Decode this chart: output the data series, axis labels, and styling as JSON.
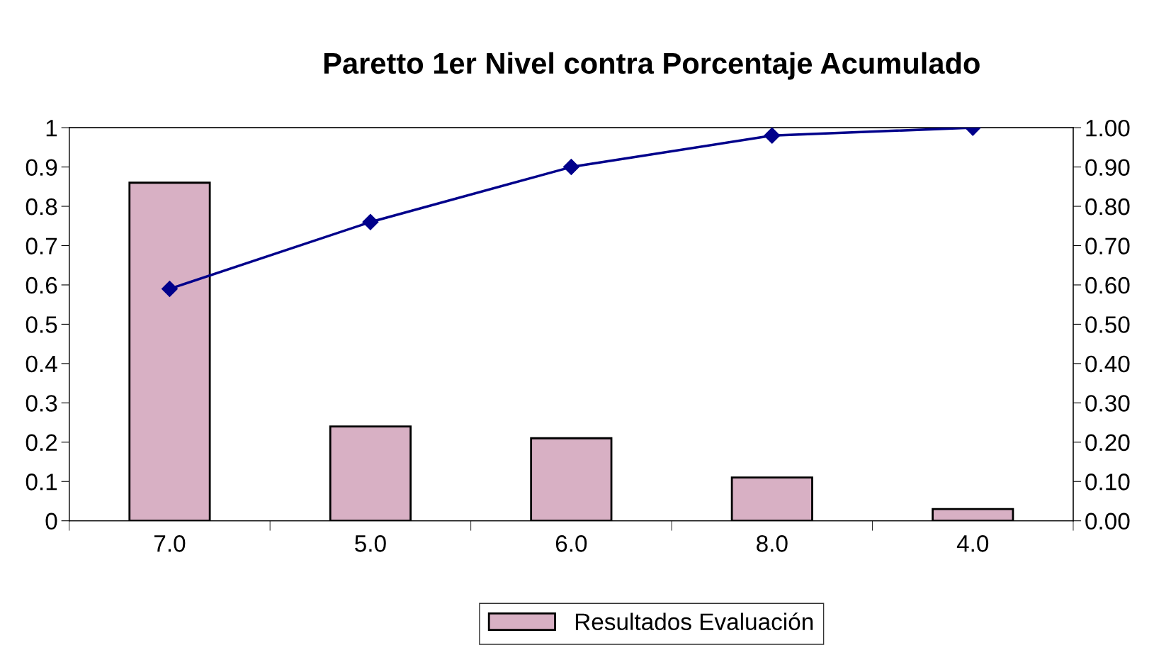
{
  "chart_data": {
    "type": "bar",
    "title": "Paretto 1er Nivel contra Porcentaje Acumulado",
    "categories": [
      "7.0",
      "5.0",
      "6.0",
      "8.0",
      "4.0"
    ],
    "series": [
      {
        "name": "Resultados Evaluación",
        "color": "#d8b0c4",
        "values": [
          0.86,
          0.24,
          0.21,
          0.11,
          0.03
        ]
      },
      {
        "type": "line",
        "axis": "y2",
        "color": "#00008b",
        "marker": "diamond",
        "line_style": "solid",
        "values": [
          0.59,
          0.76,
          0.9,
          0.98,
          1.0
        ]
      }
    ],
    "ylim": [
      0,
      1
    ],
    "yticks": [
      0,
      0.1,
      0.2,
      0.3,
      0.4,
      0.5,
      0.6,
      0.7,
      0.8,
      0.9,
      1
    ],
    "y2lim": [
      0,
      1
    ],
    "y2ticks": [
      {
        "value": 0,
        "label": "0.00"
      },
      {
        "value": 0.1,
        "label": "0.10"
      },
      {
        "value": 0.2,
        "label": "0.20"
      },
      {
        "value": 0.3,
        "label": "0.30"
      },
      {
        "value": 0.4,
        "label": "0.40"
      },
      {
        "value": 0.5,
        "label": "0.50"
      },
      {
        "value": 0.6,
        "label": "0.60"
      },
      {
        "value": 0.7,
        "label": "0.70"
      },
      {
        "value": 0.8,
        "label": "0.80"
      },
      {
        "value": 0.9,
        "label": "0.90"
      },
      {
        "value": 1,
        "label": "1.00"
      }
    ],
    "grid": false,
    "legend": "bottom"
  }
}
